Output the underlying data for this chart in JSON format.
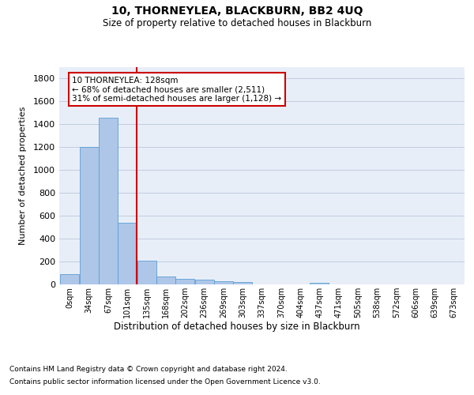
{
  "title": "10, THORNEYLEA, BLACKBURN, BB2 4UQ",
  "subtitle": "Size of property relative to detached houses in Blackburn",
  "xlabel": "Distribution of detached houses by size in Blackburn",
  "ylabel": "Number of detached properties",
  "bar_labels": [
    "0sqm",
    "34sqm",
    "67sqm",
    "101sqm",
    "135sqm",
    "168sqm",
    "202sqm",
    "236sqm",
    "269sqm",
    "303sqm",
    "337sqm",
    "370sqm",
    "404sqm",
    "437sqm",
    "471sqm",
    "505sqm",
    "538sqm",
    "572sqm",
    "606sqm",
    "639sqm",
    "673sqm"
  ],
  "bar_values": [
    90,
    1200,
    1460,
    540,
    205,
    70,
    48,
    40,
    28,
    22,
    0,
    0,
    0,
    15,
    0,
    0,
    0,
    0,
    0,
    0,
    0
  ],
  "bar_color": "#aec6e8",
  "bar_edge_color": "#5a9fd4",
  "annotation_text": "10 THORNEYLEA: 128sqm\n← 68% of detached houses are smaller (2,511)\n31% of semi-detached houses are larger (1,128) →",
  "annotation_box_color": "#ffffff",
  "annotation_box_edge_color": "#cc0000",
  "vline_color": "#cc0000",
  "background_color": "#e8eef8",
  "ylim": [
    0,
    1900
  ],
  "yticks": [
    0,
    200,
    400,
    600,
    800,
    1000,
    1200,
    1400,
    1600,
    1800
  ],
  "footer_line1": "Contains HM Land Registry data © Crown copyright and database right 2024.",
  "footer_line2": "Contains public sector information licensed under the Open Government Licence v3.0.",
  "bin_width": 33.5,
  "vline_bin_index": 3
}
